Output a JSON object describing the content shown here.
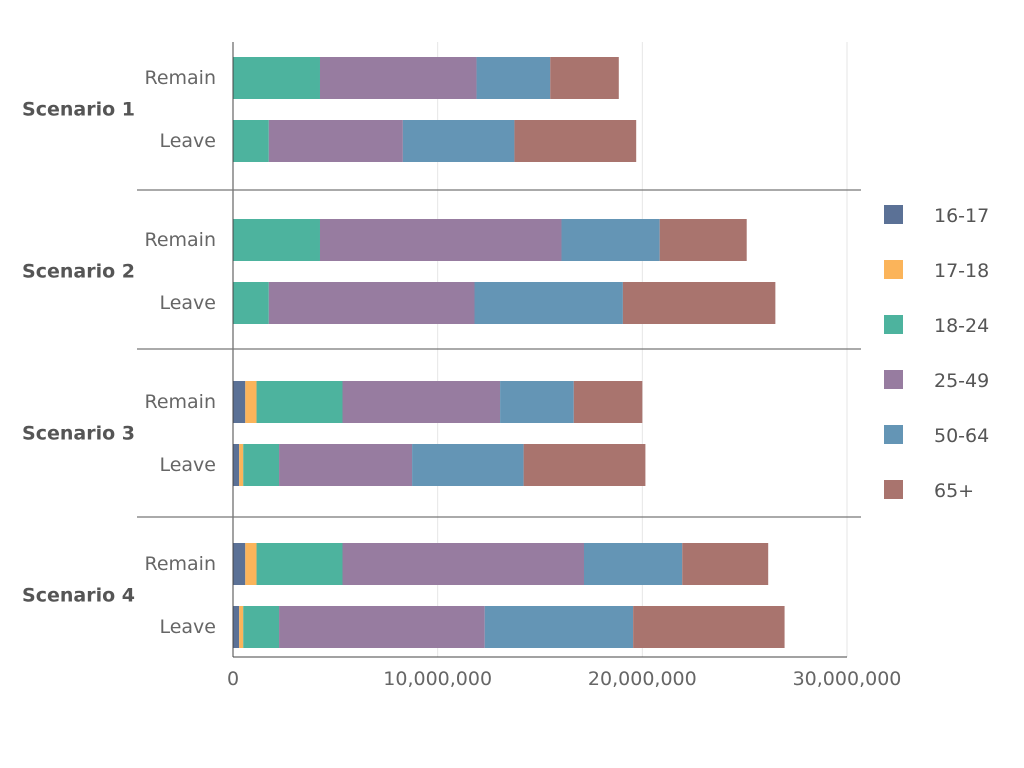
{
  "chart_data": {
    "type": "bar",
    "orientation": "horizontal",
    "stacked": true,
    "title": "",
    "xlabel": "",
    "ylabel": "",
    "xlim": [
      0,
      30000000
    ],
    "x_ticks": [
      0,
      10000000,
      20000000,
      30000000
    ],
    "x_tick_labels": [
      "0",
      "10,000,000",
      "20,000,000",
      "30,000,000"
    ],
    "grid": true,
    "legend_position": "right",
    "series_names": [
      "16-17",
      "17-18",
      "18-24",
      "25-49",
      "50-64",
      "65+"
    ],
    "colors": [
      "#5b7196",
      "#fbb45a",
      "#4db39e",
      "#977ca0",
      "#6495b5",
      "#a9746e"
    ],
    "groups": [
      {
        "label": "Scenario 1",
        "bars": [
          {
            "label": "Remain",
            "values": [
              0,
              0,
              4250000,
              7650000,
              3600000,
              3350000
            ]
          },
          {
            "label": "Leave",
            "values": [
              0,
              0,
              1750000,
              6550000,
              5450000,
              5950000
            ]
          }
        ]
      },
      {
        "label": "Scenario 2",
        "bars": [
          {
            "label": "Remain",
            "values": [
              0,
              0,
              4250000,
              11800000,
              4800000,
              4250000
            ]
          },
          {
            "label": "Leave",
            "values": [
              0,
              0,
              1750000,
              10050000,
              7250000,
              7450000
            ]
          }
        ]
      },
      {
        "label": "Scenario 3",
        "bars": [
          {
            "label": "Remain",
            "values": [
              600000,
              550000,
              4200000,
              7700000,
              3600000,
              3350000
            ]
          },
          {
            "label": "Leave",
            "values": [
              300000,
              200000,
              1750000,
              6500000,
              5450000,
              5950000
            ]
          }
        ]
      },
      {
        "label": "Scenario 4",
        "bars": [
          {
            "label": "Remain",
            "values": [
              600000,
              550000,
              4200000,
              11800000,
              4800000,
              4200000
            ]
          },
          {
            "label": "Leave",
            "values": [
              300000,
              200000,
              1750000,
              10050000,
              7250000,
              7400000
            ]
          }
        ]
      }
    ]
  }
}
